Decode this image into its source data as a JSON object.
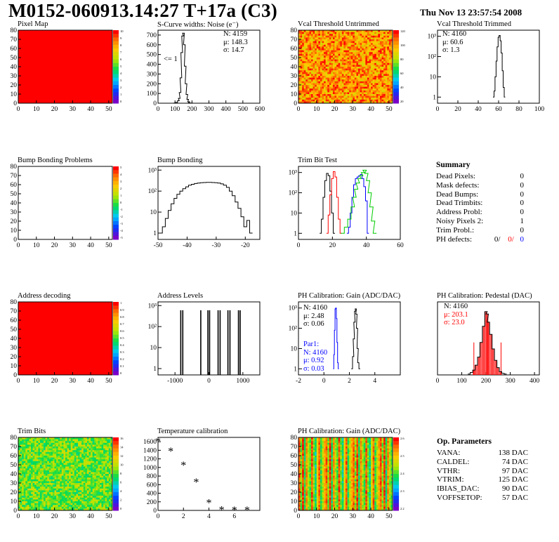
{
  "header": {
    "title": "M0152-060913.14:27 T+17a (C3)",
    "date": "Thu Nov 13 23:57:54 2008"
  },
  "panels": {
    "pixel_map": {
      "title": "Pixel Map"
    },
    "scurve": {
      "title": "S-Curve widths: Noise (e⁻)",
      "stats": [
        "N: 4159",
        "μ: 148.3",
        "σ: 14.7"
      ],
      "annot": "<= 1"
    },
    "vcal_untrimmed": {
      "title": "Vcal Threshold Untrimmed"
    },
    "vcal_trimmed": {
      "title": "Vcal Threshold Trimmed",
      "stats": [
        "N: 4160",
        "μ: 60.6",
        "σ: 1.3"
      ]
    },
    "bump_problems": {
      "title": "Bump Bonding Problems"
    },
    "bump_bonding": {
      "title": "Bump Bonding"
    },
    "trim_bit_test": {
      "title": "Trim Bit Test"
    },
    "address_decoding": {
      "title": "Address decoding"
    },
    "address_levels": {
      "title": "Address Levels"
    },
    "ph_gain": {
      "title": "PH Calibration: Gain (ADC/DAC)",
      "stats": [
        "N: 4160",
        "μ: 2.48",
        "σ: 0.06"
      ],
      "par1": [
        "Par1:",
        "N: 4160",
        "μ: 0.92",
        "σ: 0.03"
      ]
    },
    "ph_pedestal": {
      "title": "PH Calibration: Pedestal (DAC)",
      "stats": [
        "N: 4160",
        "μ: 203.1",
        "σ: 23.0"
      ]
    },
    "trim_bits": {
      "title": "Trim Bits"
    },
    "temperature": {
      "title": "Temperature calibration"
    },
    "ph_gain_map": {
      "title": "PH Calibration: Gain (ADC/DAC)"
    }
  },
  "summary": {
    "heading": "Summary",
    "rows": [
      {
        "label": "Dead Pixels:",
        "value": "0"
      },
      {
        "label": "Mask defects:",
        "value": "0"
      },
      {
        "label": "Dead Bumps:",
        "value": "0"
      },
      {
        "label": "Dead Trimbits:",
        "value": "0"
      },
      {
        "label": "Address Probl:",
        "value": "0"
      },
      {
        "label": "Noisy Pixels 2:",
        "value": "1"
      },
      {
        "label": "Trim Probl.:",
        "value": "0"
      }
    ],
    "ph_defects": {
      "label": "PH defects:",
      "v1": "0/",
      "v2": "0/",
      "v3": "0"
    }
  },
  "op_params": {
    "heading": "Op. Parameters",
    "rows": [
      {
        "label": "VANA:",
        "value": "138 DAC"
      },
      {
        "label": "CALDEL:",
        "value": "74 DAC"
      },
      {
        "label": "VTHR:",
        "value": "97 DAC"
      },
      {
        "label": "VTRIM:",
        "value": "125 DAC"
      },
      {
        "label": "IBIAS_DAC:",
        "value": "90 DAC"
      },
      {
        "label": "VOFFSETOP:",
        "value": "57 DAC"
      }
    ]
  },
  "colors": {
    "red": "#ff0000",
    "blue": "#0000ff",
    "green": "#00cc00",
    "black": "#000000"
  },
  "chart_data": [
    {
      "id": "pixel_map",
      "type": "heatmap",
      "title": "Pixel Map",
      "xlim": [
        0,
        52
      ],
      "ylim": [
        0,
        80
      ],
      "xticks": [
        0,
        10,
        20,
        30,
        40,
        50
      ],
      "yticks": [
        0,
        10,
        20,
        30,
        40,
        50,
        60,
        70,
        80
      ],
      "fill": "uniform-max",
      "zrange": [
        0,
        10
      ],
      "palette_ticks": [
        "10",
        "9",
        "8",
        "7",
        "6",
        "5",
        "4",
        "3",
        "2",
        "1",
        "0"
      ]
    },
    {
      "id": "scurve",
      "type": "line",
      "title": "S-Curve widths: Noise (e⁻)",
      "xlim": [
        0,
        600
      ],
      "ylim": [
        0,
        750
      ],
      "xticks": [
        0,
        100,
        200,
        300,
        400,
        500,
        600
      ],
      "yticks": [
        0,
        100,
        200,
        300,
        400,
        500,
        600,
        700
      ],
      "x": [
        90,
        100,
        110,
        120,
        125,
        130,
        135,
        140,
        145,
        150,
        155,
        160,
        165,
        170,
        175,
        180,
        185,
        190,
        200,
        210
      ],
      "y": [
        0,
        3,
        8,
        25,
        50,
        110,
        260,
        520,
        690,
        720,
        600,
        380,
        200,
        90,
        40,
        15,
        6,
        2,
        1,
        0
      ]
    },
    {
      "id": "vcal_untrimmed",
      "type": "heatmap",
      "title": "Vcal Threshold Untrimmed",
      "xlim": [
        0,
        52
      ],
      "ylim": [
        0,
        80
      ],
      "xticks": [
        0,
        10,
        20,
        30,
        40,
        50
      ],
      "yticks": [
        0,
        10,
        20,
        30,
        40,
        50,
        60,
        70,
        80
      ],
      "fill": "noisy-high",
      "palette_ticks": [
        "120",
        "100",
        "80",
        "60",
        "40",
        "20"
      ]
    },
    {
      "id": "vcal_trimmed",
      "type": "line",
      "log_y": true,
      "title": "Vcal Threshold Trimmed",
      "xlim": [
        0,
        100
      ],
      "ylim": [
        0.5,
        2000
      ],
      "xticks": [
        0,
        20,
        40,
        60,
        80,
        100
      ],
      "x": [
        55,
        56,
        57,
        58,
        59,
        60,
        61,
        62,
        63,
        64,
        65,
        66
      ],
      "y": [
        1,
        2,
        10,
        60,
        300,
        900,
        1100,
        600,
        150,
        20,
        3,
        1
      ]
    },
    {
      "id": "bump_problems",
      "type": "heatmap",
      "title": "Bump Bonding Problems",
      "xlim": [
        0,
        52
      ],
      "ylim": [
        0,
        80
      ],
      "xticks": [
        0,
        10,
        20,
        30,
        40,
        50
      ],
      "yticks": [
        0,
        10,
        20,
        30,
        40,
        50,
        60,
        70,
        80
      ],
      "fill": "empty",
      "zrange": [
        -5,
        5
      ],
      "palette_ticks": [
        "5",
        "4",
        "3",
        "2",
        "1",
        "0",
        "-1",
        "-2",
        "-3",
        "-4",
        "-5"
      ]
    },
    {
      "id": "bump_bonding",
      "type": "line",
      "log_y": true,
      "title": "Bump Bonding",
      "xlim": [
        -50,
        -15
      ],
      "ylim": [
        0.5,
        1500
      ],
      "xticks": [
        -50,
        -40,
        -30,
        -20
      ],
      "x": [
        -49,
        -48,
        -47,
        -46,
        -45,
        -44,
        -43,
        -42,
        -41,
        -40,
        -39,
        -38,
        -37,
        -36,
        -35,
        -34,
        -33,
        -32,
        -31,
        -30,
        -29,
        -28,
        -27,
        -26,
        -25,
        -24,
        -23,
        -22,
        -21,
        -20,
        -19,
        -18
      ],
      "y": [
        1,
        2,
        5,
        12,
        25,
        45,
        70,
        100,
        130,
        160,
        190,
        210,
        230,
        240,
        250,
        255,
        260,
        260,
        255,
        250,
        240,
        220,
        190,
        150,
        100,
        60,
        30,
        15,
        6,
        2,
        4,
        1
      ]
    },
    {
      "id": "trim_bit_test",
      "type": "line",
      "log_y": true,
      "title": "Trim Bit Test",
      "xlim": [
        0,
        60
      ],
      "ylim": [
        0.5,
        2000
      ],
      "xticks": [
        0,
        20,
        40,
        60
      ],
      "series": [
        {
          "color": "#000000",
          "x": [
            13,
            14,
            15,
            16,
            17,
            18,
            19,
            20,
            21
          ],
          "y": [
            1,
            5,
            60,
            400,
            900,
            700,
            120,
            10,
            1
          ]
        },
        {
          "color": "#ff0000",
          "x": [
            17,
            18,
            19,
            20,
            21,
            22,
            23,
            24,
            25
          ],
          "y": [
            1,
            8,
            80,
            500,
            1100,
            600,
            60,
            5,
            1
          ]
        },
        {
          "color": "#0000ff",
          "x": [
            29,
            30,
            31,
            32,
            33,
            34,
            35,
            36,
            37,
            38,
            39,
            40,
            41
          ],
          "y": [
            1,
            2,
            10,
            60,
            250,
            500,
            600,
            700,
            800,
            500,
            200,
            40,
            1
          ]
        },
        {
          "color": "#00cc00",
          "x": [
            26,
            28,
            30,
            32,
            33,
            34,
            35,
            36,
            37,
            38,
            39,
            40,
            41,
            42,
            43,
            44,
            45
          ],
          "y": [
            1,
            2,
            5,
            20,
            60,
            150,
            300,
            500,
            700,
            1000,
            1300,
            900,
            400,
            100,
            20,
            4,
            1
          ]
        }
      ]
    },
    {
      "id": "address_decoding",
      "type": "heatmap",
      "title": "Address decoding",
      "xlim": [
        0,
        52
      ],
      "ylim": [
        0,
        80
      ],
      "xticks": [
        0,
        10,
        20,
        30,
        40,
        50
      ],
      "yticks": [
        0,
        10,
        20,
        30,
        40,
        50,
        60,
        70,
        80
      ],
      "fill": "uniform-max",
      "zrange": [
        0,
        1
      ],
      "palette_ticks": [
        "1",
        "0.9",
        "0.8",
        "0.7",
        "0.6",
        "0.5",
        "0.4",
        "0.3",
        "0.2",
        "0.1",
        "0"
      ]
    },
    {
      "id": "address_levels",
      "type": "line",
      "log_y": true,
      "title": "Address Levels",
      "xlim": [
        -1500,
        1500
      ],
      "ylim": [
        0.5,
        1500
      ],
      "xticks": [
        -1000,
        0,
        1000
      ],
      "peaks": [
        -830,
        -770,
        -240,
        -30,
        20,
        270,
        330,
        560,
        620,
        870,
        920
      ],
      "peak_heights": [
        600,
        600,
        600,
        600,
        600,
        600,
        600,
        600,
        600,
        600,
        600
      ]
    },
    {
      "id": "ph_gain",
      "type": "line",
      "log_y": true,
      "title": "PH Calibration: Gain (ADC/DAC)",
      "xlim": [
        -2,
        6
      ],
      "ylim": [
        0.5,
        2000
      ],
      "xticks": [
        -2,
        0,
        2,
        4
      ],
      "series": [
        {
          "color": "#000000",
          "x": [
            2.2,
            2.3,
            2.35,
            2.4,
            2.45,
            2.5,
            2.55,
            2.6,
            2.65,
            2.7,
            2.8
          ],
          "y": [
            1,
            4,
            30,
            200,
            700,
            900,
            500,
            100,
            10,
            2,
            1
          ]
        },
        {
          "color": "#0000ff",
          "x": [
            0.75,
            0.8,
            0.85,
            0.9,
            0.95,
            1.0,
            1.05,
            1.1,
            1.15
          ],
          "y": [
            1,
            5,
            80,
            900,
            1000,
            300,
            20,
            2,
            1
          ]
        }
      ]
    },
    {
      "id": "ph_pedestal",
      "type": "line",
      "title": "PH Calibration: Pedestal (DAC)",
      "xlim": [
        0,
        420
      ],
      "ylim": [
        0,
        90
      ],
      "xticks": [
        0,
        100,
        200,
        300,
        400
      ],
      "x": [
        130,
        140,
        150,
        160,
        170,
        180,
        190,
        200,
        205,
        210,
        220,
        230,
        240,
        250,
        260,
        270,
        280
      ],
      "y": [
        1,
        3,
        6,
        12,
        22,
        40,
        60,
        78,
        75,
        65,
        50,
        32,
        18,
        9,
        4,
        2,
        1
      ]
    },
    {
      "id": "trim_bits",
      "type": "heatmap",
      "title": "Trim Bits",
      "xlim": [
        0,
        52
      ],
      "ylim": [
        0,
        80
      ],
      "xticks": [
        0,
        10,
        20,
        30,
        40,
        50
      ],
      "yticks": [
        0,
        10,
        20,
        30,
        40,
        50,
        60,
        70,
        80
      ],
      "fill": "noisy-mid",
      "palette_ticks": [
        "16",
        "14",
        "12",
        "10",
        "8",
        "6",
        "4",
        "2",
        "0"
      ]
    },
    {
      "id": "temperature",
      "type": "scatter",
      "title": "Temperature calibration",
      "xlim": [
        0,
        8
      ],
      "ylim": [
        0,
        1700
      ],
      "xticks": [
        0,
        2,
        4,
        6
      ],
      "yticks": [
        0,
        200,
        400,
        600,
        800,
        1000,
        1200,
        1400,
        1600
      ],
      "x": [
        0,
        1,
        2,
        3,
        4,
        5,
        6,
        7
      ],
      "y": [
        1600,
        1370,
        1050,
        650,
        170,
        10,
        0,
        0
      ]
    },
    {
      "id": "ph_gain_map",
      "type": "heatmap",
      "title": "PH Calibration: Gain (ADC/DAC)",
      "xlim": [
        0,
        52
      ],
      "ylim": [
        0,
        80
      ],
      "xticks": [
        0,
        10,
        20,
        30,
        40,
        50
      ],
      "yticks": [
        0,
        10,
        20,
        30,
        40,
        50,
        60,
        70,
        80
      ],
      "fill": "columns",
      "palette_ticks": [
        "2.6",
        "2.5",
        "2.4",
        "2.3",
        "2.2"
      ]
    }
  ]
}
